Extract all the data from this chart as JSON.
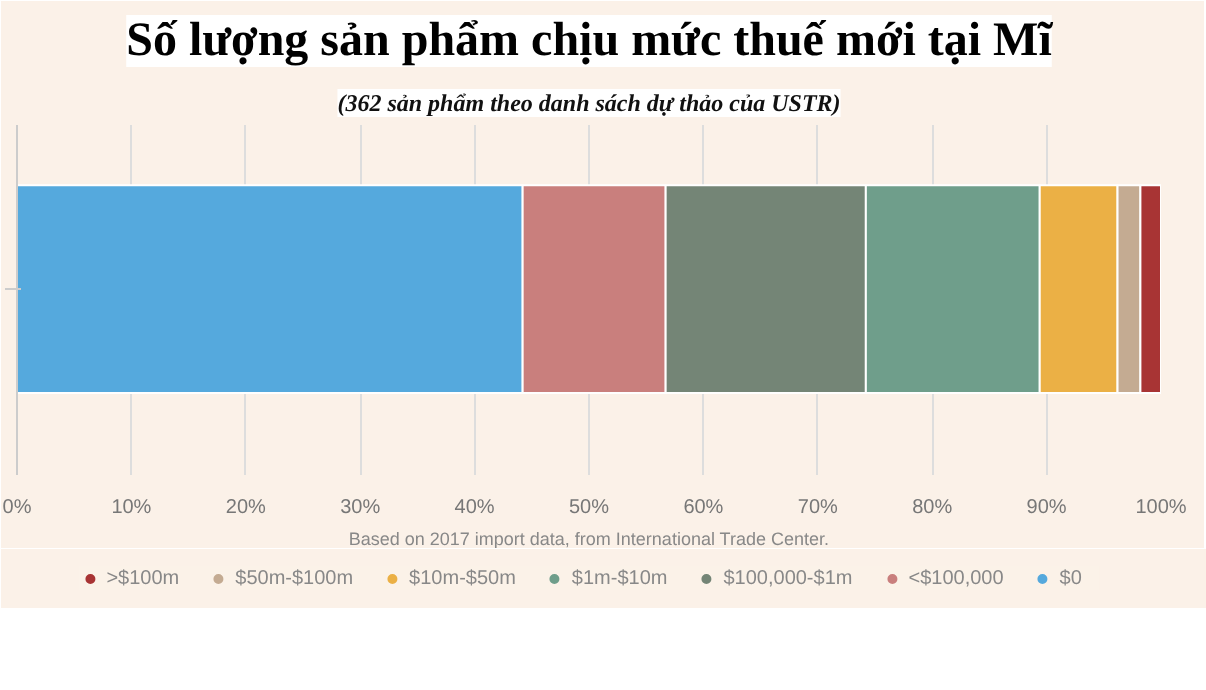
{
  "chart_data": {
    "type": "bar",
    "orientation": "horizontal",
    "stacked": true,
    "title": "Số lượng sản phẩm chịu mức thuế mới tại Mĩ",
    "subtitle": "(362 sản phẩm theo danh sách dự thảo của USTR)",
    "annotations": [
      "Based on 2017 import data, from International Trade Center."
    ],
    "categories": [
      null
    ],
    "series": [
      {
        "name": "$0",
        "color": "#55a9dd",
        "values": [
          44.2
        ]
      },
      {
        "name": "<$100,000",
        "color": "#c97f7d",
        "values": [
          12.5
        ]
      },
      {
        "name": "$100,000-$1m",
        "color": "#748576",
        "values": [
          17.5
        ]
      },
      {
        "name": "$1m-$10m",
        "color": "#6f9e8b",
        "values": [
          15.2
        ]
      },
      {
        "name": "$10m-$50m",
        "color": "#ebb045",
        "values": [
          6.8
        ]
      },
      {
        "name": "$50m-$100m",
        "color": "#c4ab92",
        "values": [
          2.0
        ]
      },
      {
        "name": ">$100m",
        "color": "#a83434",
        "values": [
          1.8
        ]
      }
    ],
    "xlim": [
      0,
      100
    ],
    "xticks": [
      {
        "value": 0,
        "label": "0%"
      },
      {
        "value": 10,
        "label": "10%"
      },
      {
        "value": 20,
        "label": "20%"
      },
      {
        "value": 30,
        "label": "30%"
      },
      {
        "value": 40,
        "label": "40%"
      },
      {
        "value": 50,
        "label": "50%"
      },
      {
        "value": 60,
        "label": "60%"
      },
      {
        "value": 70,
        "label": "70%"
      },
      {
        "value": 80,
        "label": "80%"
      },
      {
        "value": 90,
        "label": "90%"
      },
      {
        "value": 100,
        "label": "100%"
      }
    ],
    "grid": "x",
    "legend": "bottom",
    "tick_labels": "x"
  }
}
